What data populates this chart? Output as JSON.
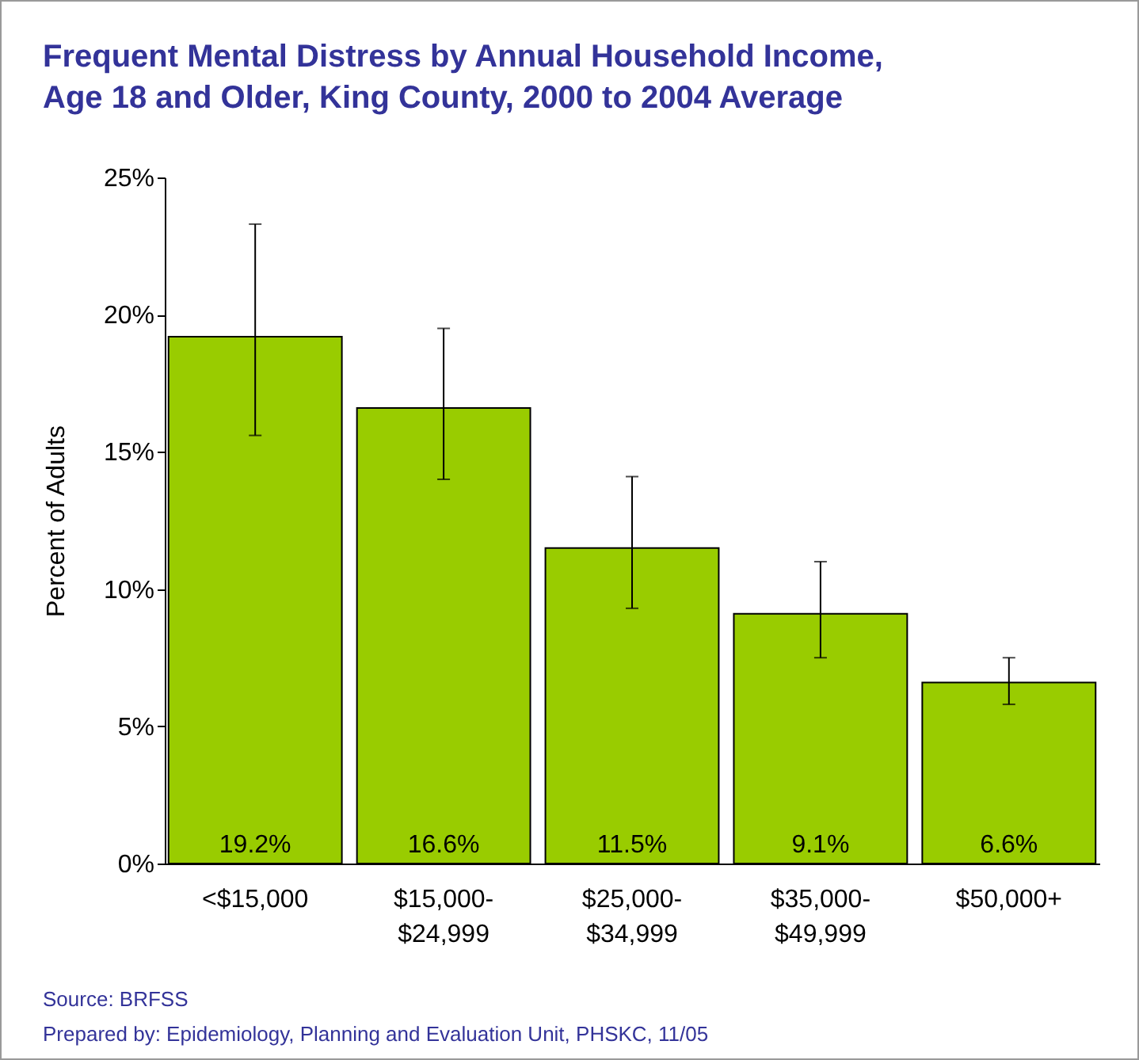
{
  "chart_data": {
    "type": "bar",
    "title": "Frequent Mental Distress by Annual Household Income, Age 18 and Older, King County, 2000 to 2004 Average",
    "ylabel": "Percent of Adults",
    "categories": [
      "<$15,000",
      "$15,000-$24,999",
      "$25,000-$34,999",
      "$35,000-$49,999",
      "$50,000+"
    ],
    "values": [
      19.2,
      16.6,
      11.5,
      9.1,
      6.6
    ],
    "value_labels": [
      "19.2%",
      "16.6%",
      "11.5%",
      "9.1%",
      "6.6%"
    ],
    "errors": [
      [
        15.6,
        23.3
      ],
      [
        14.0,
        19.5
      ],
      [
        9.3,
        14.1
      ],
      [
        7.5,
        11.0
      ],
      [
        5.8,
        7.5
      ]
    ],
    "color": "#99cc00",
    "ylim": [
      0,
      25
    ],
    "yticks": [
      {
        "value": 0,
        "label": "0%"
      },
      {
        "value": 5,
        "label": "5%"
      },
      {
        "value": 10,
        "label": "10%"
      },
      {
        "value": 15,
        "label": "15%"
      },
      {
        "value": 20,
        "label": "20%"
      },
      {
        "value": 25,
        "label": "25%"
      }
    ],
    "grid": false,
    "annotations": [
      "Source: BRFSS",
      "Prepared by: Epidemiology, Planning and Evaluation Unit, PHSKC, 11/05"
    ]
  }
}
